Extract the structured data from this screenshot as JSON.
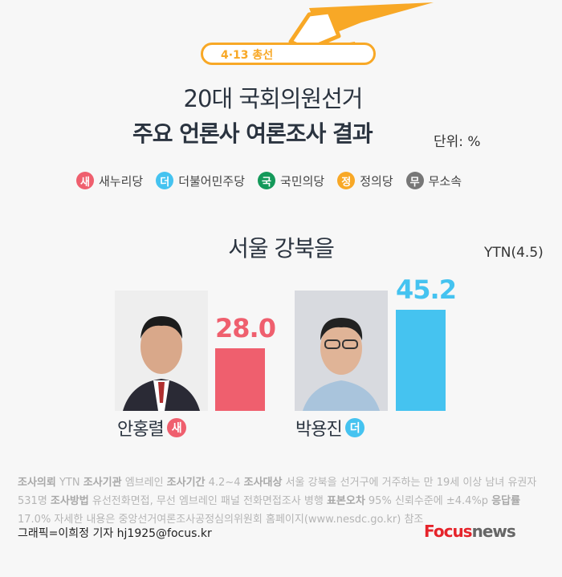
{
  "header": {
    "badge": "4·13 총선",
    "title_line1": "20대 국회의원선거",
    "title_line2": "주요 언론사 여론조사 결과",
    "unit": "단위: %"
  },
  "legend": [
    {
      "badge": "새",
      "label": "새누리당",
      "color": "#ef5f6e"
    },
    {
      "badge": "더",
      "label": "더불어민주당",
      "color": "#45c3f0"
    },
    {
      "badge": "국",
      "label": "국민의당",
      "color": "#14995a"
    },
    {
      "badge": "정",
      "label": "정의당",
      "color": "#f8a826"
    },
    {
      "badge": "무",
      "label": "무소속",
      "color": "#777777"
    }
  ],
  "chart_data": {
    "type": "bar",
    "title": "서울 강북을",
    "source": "YTN(4.5)",
    "categories": [
      "안홍렬",
      "박용진"
    ],
    "party_badges": [
      "새",
      "더"
    ],
    "values": [
      28.0,
      45.2
    ],
    "value_labels": [
      "28.0",
      "45.2"
    ],
    "colors": [
      "#ef5f6e",
      "#45c3f0"
    ]
  },
  "footer": {
    "note_parts": [
      [
        "조사의뢰",
        true
      ],
      [
        " YTN ",
        false
      ],
      [
        "조사기관",
        true
      ],
      [
        " 엠브레인 ",
        false
      ],
      [
        "조사기간",
        true
      ],
      [
        " 4.2~4 ",
        false
      ],
      [
        "조사대상",
        true
      ],
      [
        " 서울 강북을 선거구에 거주하는 만 19세 이상 남녀 유권자 531명 ",
        false
      ],
      [
        "조사방법",
        true
      ],
      [
        " 유선전화면접, 무선 엠브레인 패널 전화면접조사 병행  ",
        false
      ],
      [
        "표본오차",
        true
      ],
      [
        " 95% 신뢰수준에 ±4.4%p  ",
        false
      ],
      [
        "응답률",
        true
      ],
      [
        " 17.0%  자세한 내용은 중앙선거여론조사공정심의위원회 홈페이지(www.nesdc.go.kr) 참조",
        false
      ]
    ],
    "credit": "그래픽=이희정 기자 hj1925@focus.kr",
    "logo_focus": "Focus",
    "logo_news": "news"
  }
}
